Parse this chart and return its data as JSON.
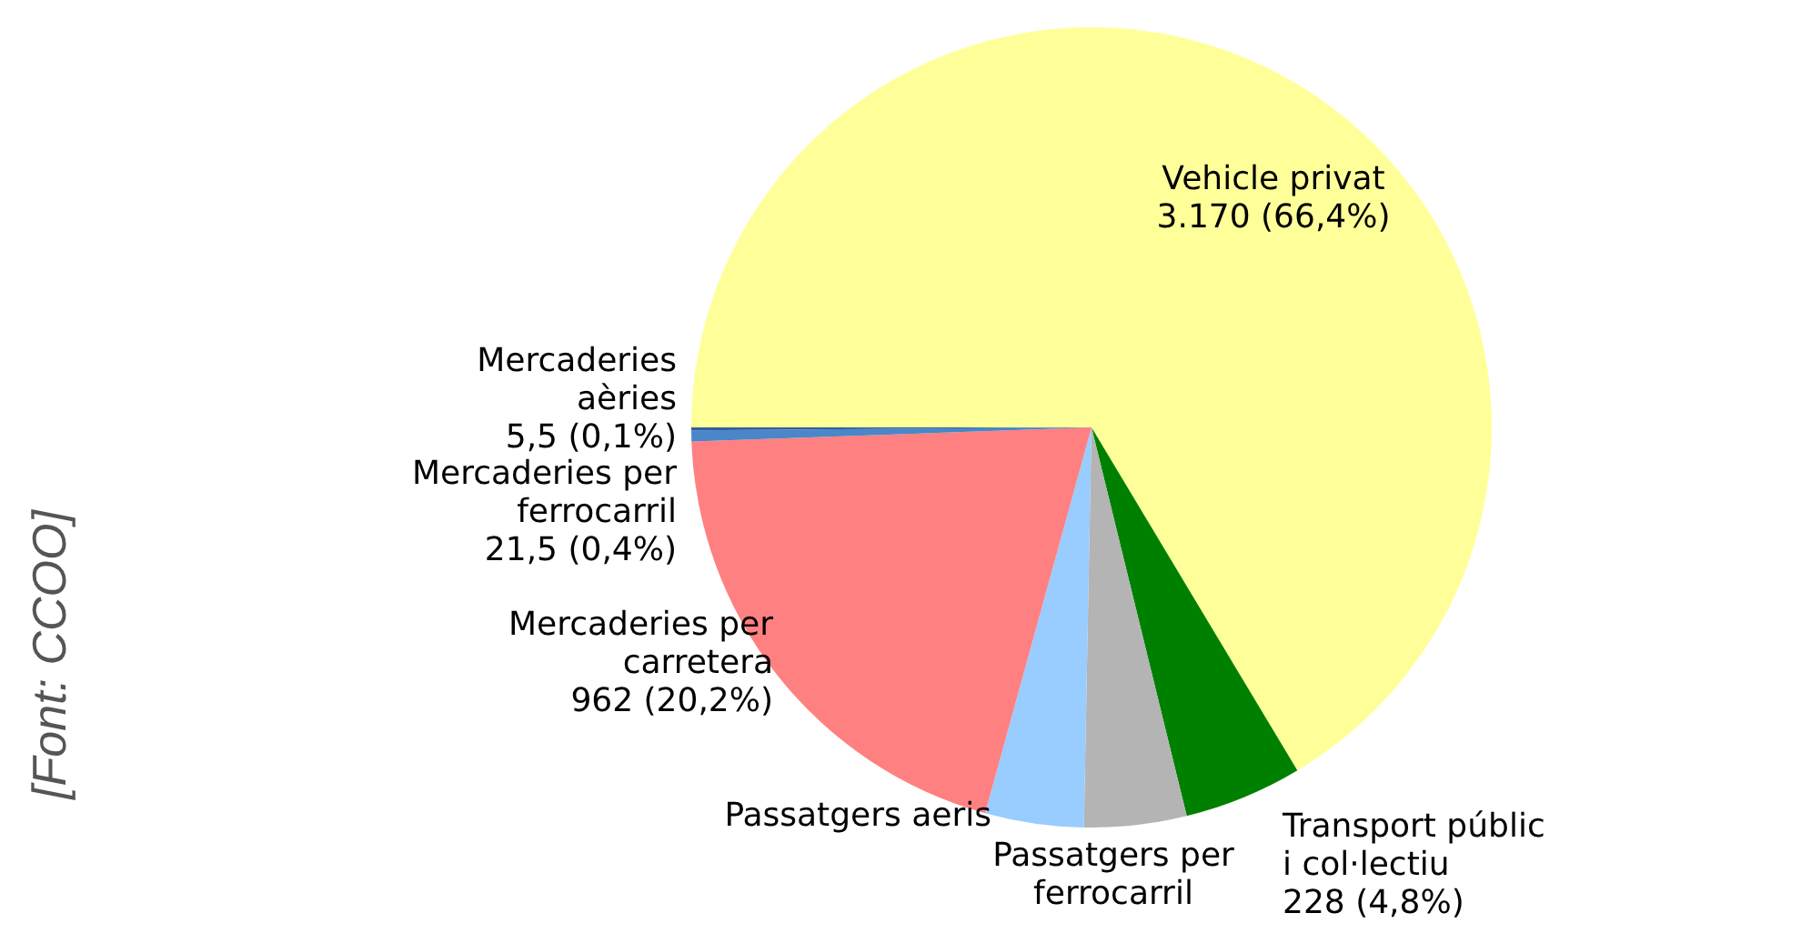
{
  "chart_data": {
    "type": "pie",
    "categories": [
      "Vehicle privat",
      "Transport públic i col·lectiu",
      "Passatgers per ferrocarril",
      "Passatgers aeris",
      "Mercaderies per carretera",
      "Mercaderies per ferrocarril",
      "Mercaderies aèries"
    ],
    "values": [
      3170,
      228,
      197,
      190,
      962,
      21.5,
      5.5
    ],
    "value_labels": [
      "3.170  (66,4%)",
      "228  (4,8%)",
      null,
      null,
      "962  (20,2%)",
      "21,5  (0,4%)",
      "5,5  (0,1%)"
    ],
    "colors": [
      "#ffff99",
      "#008000",
      "#b4b4b4",
      "#99ccff",
      "#ff8080",
      "#4a86c8",
      "#2f5fa0"
    ],
    "annotations": [
      "[Font: CCOO]"
    ]
  }
}
